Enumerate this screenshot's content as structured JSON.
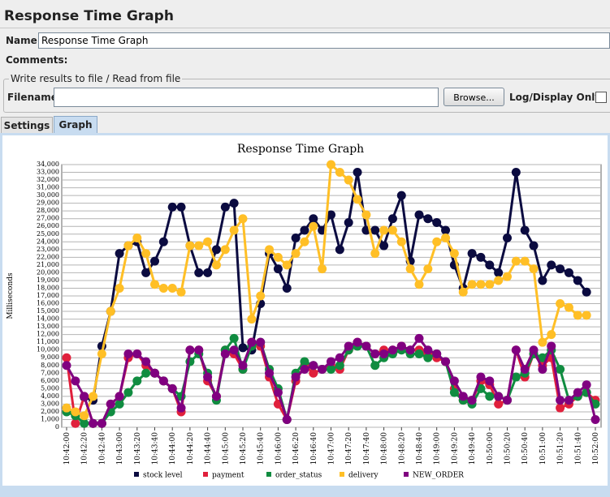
{
  "header": {
    "title": "Response Time Graph"
  },
  "form": {
    "name_label": "Name:",
    "name_value": "Response Time Graph",
    "comments_label": "Comments:",
    "fieldset_legend": "Write results to file / Read from file",
    "filename_label": "Filename",
    "browse_button": "Browse...",
    "log_display_label": "Log/Display Only:"
  },
  "tabs": [
    "Settings",
    "Graph"
  ],
  "chart_data": {
    "type": "line",
    "title": "Response Time Graph",
    "y_label": "Milliseconds",
    "categories": [
      "10:42:00",
      null,
      "10:42:20",
      null,
      "10:42:40",
      null,
      "10:43:00",
      null,
      "10:43:20",
      null,
      "10:43:40",
      null,
      "10:44:00",
      null,
      "10:44:20",
      null,
      "10:44:40",
      null,
      "10:45:00",
      null,
      "10:45:20",
      null,
      "10:45:40",
      null,
      "10:46:00",
      null,
      "10:46:20",
      null,
      "10:46:40",
      null,
      "10:47:00",
      null,
      "10:47:20",
      null,
      "10:47:40",
      null,
      "10:48:00",
      null,
      "10:48:20",
      null,
      "10:48:40",
      null,
      "10:49:00",
      null,
      "10:49:20",
      null,
      "10:49:40",
      null,
      "10:50:00",
      null,
      "10:50:20",
      null,
      "10:50:40",
      null,
      "10:51:00",
      null,
      "10:51:20",
      null,
      "10:51:40",
      null,
      "10:52:00"
    ],
    "series": [
      {
        "name": "stock level",
        "color": "#0b0b40",
        "values": [
          null,
          null,
          3900,
          3500,
          10500,
          15000,
          22500,
          23500,
          24000,
          20000,
          21500,
          24000,
          28500,
          28500,
          23500,
          20000,
          20000,
          23000,
          28500,
          29000,
          10300,
          10000,
          16000,
          22500,
          20500,
          18000,
          24500,
          25500,
          27000,
          25500,
          27500,
          23000,
          26500,
          33000,
          25500,
          25500,
          23500,
          27000,
          30000,
          21500,
          27500,
          27000,
          26500,
          25500,
          21000,
          18000,
          22500,
          22000,
          21000,
          20000,
          24500,
          33000,
          25500,
          23500,
          19000,
          21000,
          20500,
          20000,
          19000,
          17500,
          null
        ]
      },
      {
        "name": "payment",
        "color": "#e0203c",
        "values": [
          9000,
          500,
          4000,
          500,
          500,
          3000,
          4000,
          9000,
          9500,
          8000,
          7000,
          6000,
          5000,
          2000,
          10000,
          10000,
          6000,
          4000,
          10000,
          9500,
          7500,
          11000,
          10500,
          6500,
          3000,
          1000,
          6000,
          8000,
          7000,
          7500,
          8000,
          7500,
          10000,
          11000,
          10500,
          9500,
          10000,
          10000,
          10500,
          10000,
          10000,
          9500,
          9000,
          8500,
          5000,
          3500,
          3500,
          6000,
          5500,
          3000,
          3500,
          10000,
          6500,
          9500,
          8000,
          9000,
          2500,
          3000,
          4000,
          4500,
          3500
        ]
      },
      {
        "name": "order_status",
        "color": "#108c40",
        "values": [
          2000,
          1500,
          500,
          500,
          500,
          2000,
          3000,
          4500,
          6000,
          7000,
          7000,
          6000,
          5000,
          4000,
          8500,
          9500,
          7000,
          3500,
          10000,
          11500,
          7500,
          10500,
          11000,
          7500,
          5000,
          1000,
          7000,
          8500,
          8000,
          7500,
          7500,
          8000,
          10000,
          10500,
          10500,
          8000,
          9000,
          9500,
          10000,
          9500,
          9500,
          9000,
          9500,
          8500,
          4500,
          3500,
          3000,
          5000,
          4000,
          4000,
          3500,
          6500,
          7000,
          9500,
          9000,
          10000,
          7500,
          3500,
          4000,
          4500,
          3000
        ]
      },
      {
        "name": "delivery",
        "color": "#ffbf26",
        "values": [
          2500,
          2000,
          1500,
          4000,
          9500,
          15000,
          18000,
          23500,
          24500,
          22500,
          18500,
          18000,
          18000,
          17500,
          23500,
          23500,
          24000,
          21000,
          23000,
          25500,
          27000,
          14000,
          17000,
          23000,
          22000,
          21000,
          22500,
          24000,
          26000,
          20500,
          34000,
          33000,
          32000,
          29500,
          27500,
          22500,
          25500,
          25500,
          24000,
          20500,
          18500,
          20500,
          24000,
          24500,
          22500,
          17500,
          18500,
          18500,
          18500,
          19000,
          19500,
          21500,
          21500,
          20500,
          11000,
          12000,
          16000,
          15500,
          14500,
          14500,
          null
        ]
      },
      {
        "name": "NEW_ORDER",
        "color": "#800080",
        "values": [
          8000,
          6000,
          4000,
          500,
          500,
          3000,
          4000,
          9500,
          9500,
          8500,
          7000,
          6000,
          5000,
          2500,
          10000,
          10000,
          6500,
          4000,
          9500,
          10000,
          8000,
          11000,
          11000,
          7000,
          4500,
          1000,
          6500,
          7500,
          8000,
          7500,
          8500,
          9000,
          10500,
          11000,
          10500,
          9500,
          9500,
          10000,
          10500,
          10000,
          11500,
          10000,
          9500,
          8500,
          6000,
          4000,
          3500,
          6500,
          6000,
          4000,
          3500,
          10000,
          7500,
          10000,
          7500,
          10500,
          3500,
          3500,
          4500,
          5500,
          1000
        ]
      }
    ],
    "ylim": [
      0,
      34000
    ],
    "yticks": [
      0,
      {
        "value": 1000,
        "label": "1,000"
      },
      {
        "value": 2000,
        "label": "2,000"
      },
      {
        "value": 3000,
        "label": "3,000"
      },
      {
        "value": 4000,
        "label": "4,000"
      },
      {
        "value": 5000,
        "label": "5,000"
      },
      {
        "value": 6000,
        "label": "6,000"
      },
      {
        "value": 7000,
        "label": "7,000"
      },
      {
        "value": 8000,
        "label": "8,000"
      },
      {
        "value": 9000,
        "label": "9,000"
      },
      {
        "value": 10000,
        "label": "10,000"
      },
      {
        "value": 11000,
        "label": "11,000"
      },
      {
        "value": 12000,
        "label": "12,000"
      },
      {
        "value": 13000,
        "label": "13,000"
      },
      {
        "value": 14000,
        "label": "14,000"
      },
      {
        "value": 15000,
        "label": "15,000"
      },
      {
        "value": 16000,
        "label": "16,000"
      },
      {
        "value": 17000,
        "label": "17,000"
      },
      {
        "value": 18000,
        "label": "18,000"
      },
      {
        "value": 19000,
        "label": "19,000"
      },
      {
        "value": 20000,
        "label": "20,000"
      },
      {
        "value": 21000,
        "label": "21,000"
      },
      {
        "value": 22000,
        "label": "22,000"
      },
      {
        "value": 23000,
        "label": "23,000"
      },
      {
        "value": 24000,
        "label": "24,000"
      },
      {
        "value": 25000,
        "label": "25,000"
      },
      {
        "value": 26000,
        "label": "26,000"
      },
      {
        "value": 27000,
        "label": "27,000"
      },
      {
        "value": 28000,
        "label": "28,000"
      },
      {
        "value": 29000,
        "label": "29,000"
      },
      {
        "value": 30000,
        "label": "30,000"
      },
      {
        "value": 31000,
        "label": "31,000"
      },
      {
        "value": 32000,
        "label": "32,000"
      },
      {
        "value": 33000,
        "label": "33,000"
      },
      {
        "value": 34000,
        "label": "34,000"
      }
    ],
    "grid": true,
    "legend": "bottom"
  }
}
